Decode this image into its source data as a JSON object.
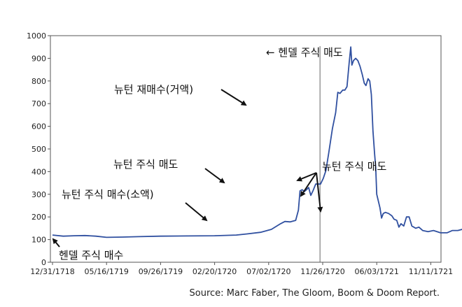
{
  "chart_data": {
    "type": "line",
    "title": "",
    "xlabel": "",
    "ylabel": "",
    "ylim": [
      0,
      1000
    ],
    "yticks": [
      0,
      100,
      200,
      300,
      400,
      500,
      600,
      700,
      800,
      900,
      1000
    ],
    "xticks": [
      "12/31/1718",
      "05/16/1719",
      "09/26/1719",
      "02/20/1720",
      "07/02/1720",
      "11/26/1720",
      "06/03/1721",
      "11/11/1721"
    ],
    "grid": false,
    "series": [
      {
        "name": "",
        "color": "#3050a0",
        "points": [
          [
            0.0,
            120
          ],
          [
            0.2,
            115
          ],
          [
            0.4,
            117
          ],
          [
            0.6,
            118
          ],
          [
            0.8,
            115
          ],
          [
            1.0,
            110
          ],
          [
            1.3,
            111
          ],
          [
            1.6,
            113
          ],
          [
            2.0,
            115
          ],
          [
            2.5,
            116
          ],
          [
            3.0,
            117
          ],
          [
            3.4,
            120
          ],
          [
            3.6,
            125
          ],
          [
            3.85,
            132
          ],
          [
            4.05,
            145
          ],
          [
            4.22,
            170
          ],
          [
            4.3,
            180
          ],
          [
            4.4,
            178
          ],
          [
            4.5,
            185
          ],
          [
            4.55,
            230
          ],
          [
            4.58,
            315
          ],
          [
            4.62,
            320
          ],
          [
            4.66,
            312
          ],
          [
            4.7,
            320
          ],
          [
            4.74,
            330
          ],
          [
            4.78,
            295
          ],
          [
            4.82,
            315
          ],
          [
            4.87,
            345
          ],
          [
            4.92,
            345
          ],
          [
            4.96,
            345
          ],
          [
            5.01,
            370
          ],
          [
            5.06,
            405
          ],
          [
            5.11,
            480
          ],
          [
            5.18,
            590
          ],
          [
            5.24,
            660
          ],
          [
            5.28,
            750
          ],
          [
            5.32,
            745
          ],
          [
            5.37,
            760
          ],
          [
            5.41,
            760
          ],
          [
            5.45,
            775
          ],
          [
            5.49,
            880
          ],
          [
            5.52,
            950
          ],
          [
            5.54,
            870
          ],
          [
            5.57,
            890
          ],
          [
            5.61,
            900
          ],
          [
            5.65,
            890
          ],
          [
            5.69,
            865
          ],
          [
            5.73,
            830
          ],
          [
            5.77,
            790
          ],
          [
            5.8,
            780
          ],
          [
            5.84,
            810
          ],
          [
            5.87,
            800
          ],
          [
            5.9,
            740
          ],
          [
            5.93,
            580
          ],
          [
            5.96,
            480
          ],
          [
            5.98,
            420
          ],
          [
            6.0,
            300
          ],
          [
            6.03,
            270
          ],
          [
            6.06,
            240
          ],
          [
            6.09,
            195
          ],
          [
            6.12,
            215
          ],
          [
            6.16,
            220
          ],
          [
            6.22,
            215
          ],
          [
            6.28,
            205
          ],
          [
            6.32,
            190
          ],
          [
            6.37,
            185
          ],
          [
            6.41,
            155
          ],
          [
            6.45,
            170
          ],
          [
            6.5,
            160
          ],
          [
            6.55,
            200
          ],
          [
            6.6,
            200
          ],
          [
            6.65,
            160
          ],
          [
            6.72,
            150
          ],
          [
            6.78,
            155
          ],
          [
            6.85,
            140
          ],
          [
            6.95,
            135
          ],
          [
            7.05,
            140
          ],
          [
            7.18,
            130
          ],
          [
            7.3,
            130
          ],
          [
            7.4,
            140
          ],
          [
            7.5,
            140
          ],
          [
            7.58,
            145
          ],
          [
            7.7,
            140
          ],
          [
            7.8,
            138
          ],
          [
            7.85,
            135
          ],
          [
            7.88,
            100
          ],
          [
            7.95,
            95
          ],
          [
            8.05,
            97
          ],
          [
            8.15,
            95
          ],
          [
            8.25,
            96
          ],
          [
            8.35,
            97
          ]
        ]
      }
    ],
    "marker_line_x": 4.95,
    "annotations": [
      {
        "text": "← 헨델 주식 매도"
      },
      {
        "text": "뉴턴 재매수(거액)"
      },
      {
        "text": "뉴턴 주식 매도"
      },
      {
        "text": "뉴턴 주식 매수(소액)"
      },
      {
        "text": "뉴턴 주식 매도"
      },
      {
        "text": "헨델 주식 매수"
      }
    ],
    "source": "Source: Marc Faber, The Gloom, Boom & Doom Report."
  }
}
